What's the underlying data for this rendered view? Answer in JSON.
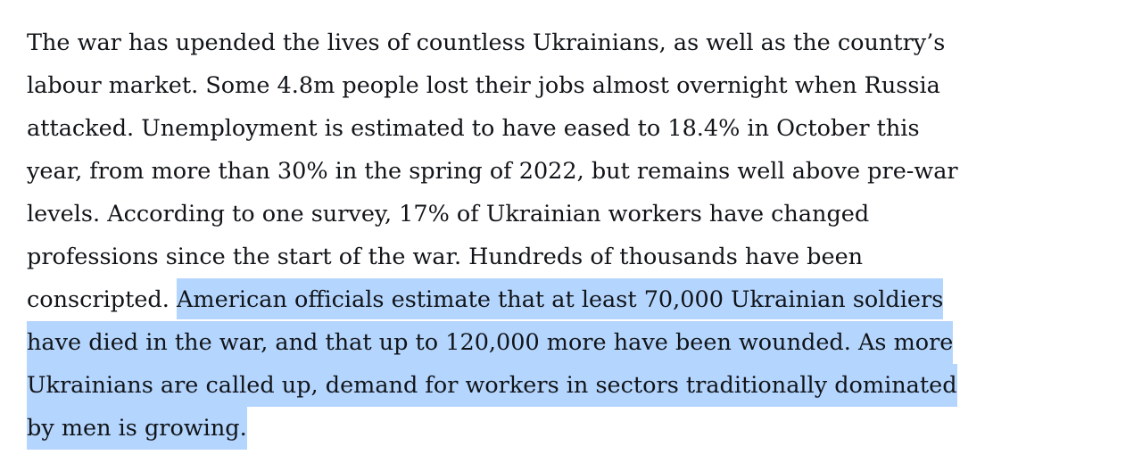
{
  "article": {
    "lines": [
      "The war has upended the lives of countless Ukrainians, as well as the country’s",
      "labour market. Some 4.8m people lost their jobs almost overnight when Russia",
      "attacked. Unemployment is estimated to have eased to 18.4% in October this",
      "year, from more than 30% in the spring of 2022, but remains well above pre-war",
      "levels. According to one survey, 17% of Ukrainian workers have changed",
      "professions since the start of the war. Hundreds of thousands have been"
    ],
    "line7_plain": "conscripted. ",
    "selected_lines": [
      "American officials estimate that at least 70,000 Ukrainian soldiers",
      "have died in the war, and that up to 120,000 more have been wounded. As more",
      "Ukrainians are called up, demand for workers in sectors traditionally dominated",
      "by men is growing."
    ]
  },
  "colors": {
    "selection": "#b4d5fe",
    "text": "#111418"
  }
}
